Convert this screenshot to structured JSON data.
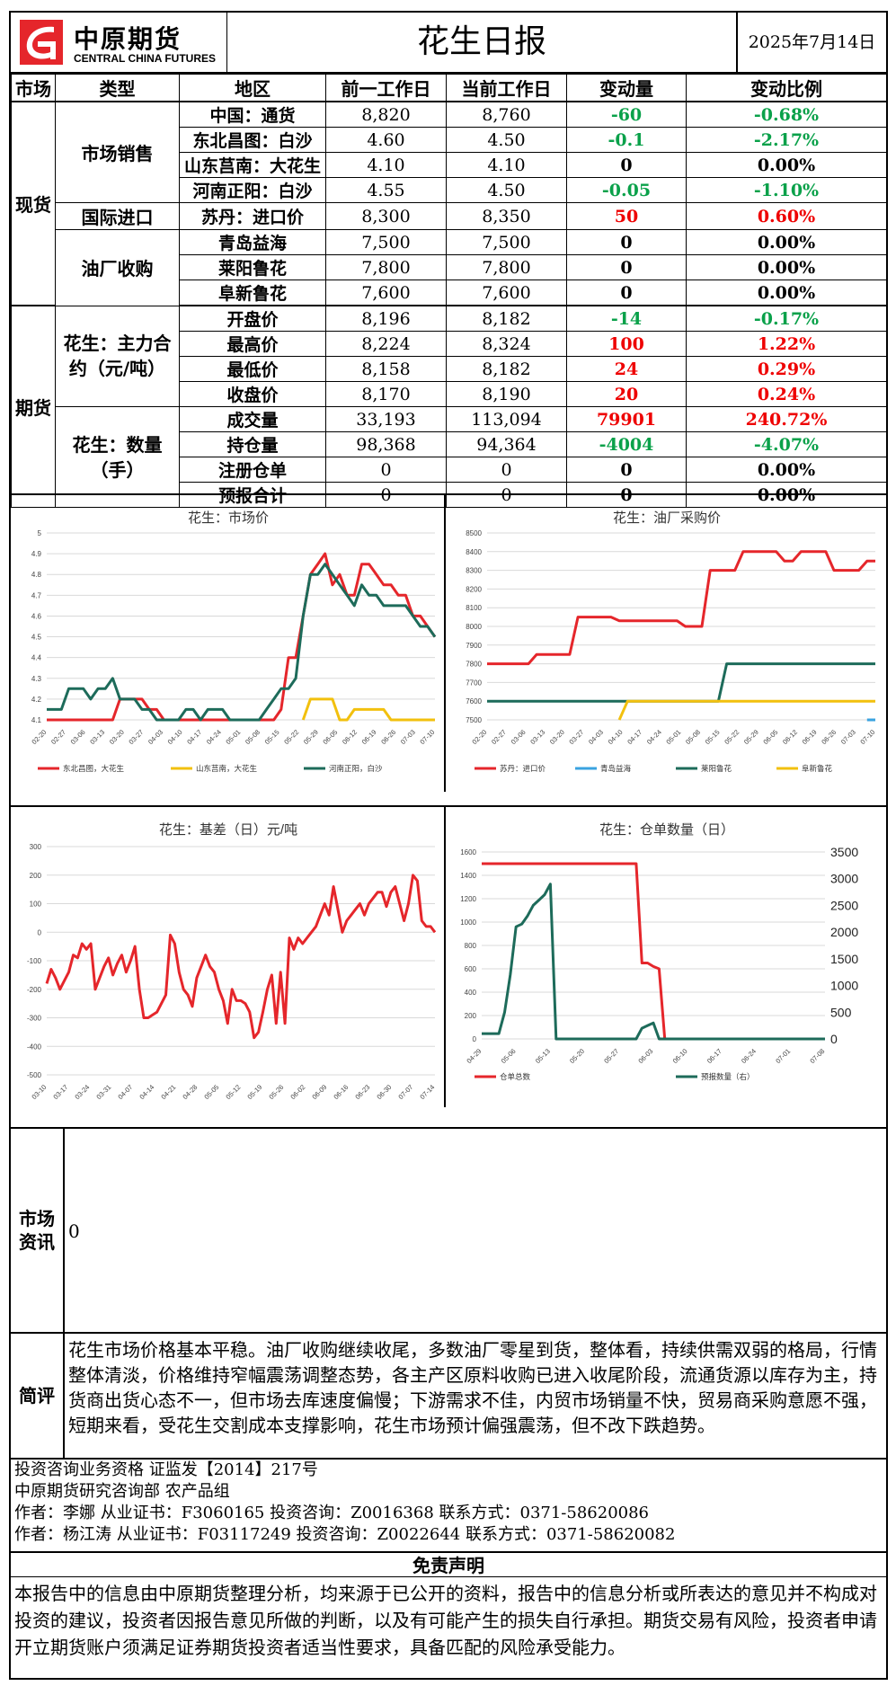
{
  "header": {
    "logo_cn": "中原期货",
    "logo_en": "CENTRAL CHINA FUTURES",
    "title": "花生日报",
    "date": "2025年7月14日"
  },
  "table": {
    "columns": [
      "市场",
      "类型",
      "地区",
      "前一工作日",
      "当前工作日",
      "变动量",
      "变动比例"
    ],
    "market_spot": "现货",
    "market_futures": "期货",
    "group_sales": "市场销售",
    "group_import": "国际进口",
    "group_oil": "油厂收购",
    "group_contract": "花生：主力合约（元/吨）",
    "group_volume": "花生：数量（手）",
    "rows": [
      {
        "name": "中国：通货",
        "prev": "8,820",
        "cur": "8,760",
        "chg": "-60",
        "pct": "-0.68%",
        "color": "#0aa14a"
      },
      {
        "name": "东北昌图：白沙",
        "prev": "4.60",
        "cur": "4.50",
        "chg": "-0.1",
        "pct": "-2.17%",
        "color": "#0aa14a"
      },
      {
        "name": "山东莒南：大花生",
        "prev": "4.10",
        "cur": "4.10",
        "chg": "0",
        "pct": "0.00%",
        "color": "#000000"
      },
      {
        "name": "河南正阳：白沙",
        "prev": "4.55",
        "cur": "4.50",
        "chg": "-0.05",
        "pct": "-1.10%",
        "color": "#0aa14a"
      },
      {
        "name": "苏丹：进口价",
        "prev": "8,300",
        "cur": "8,350",
        "chg": "50",
        "pct": "0.60%",
        "color": "#ee0000"
      },
      {
        "name": "青岛益海",
        "prev": "7,500",
        "cur": "7,500",
        "chg": "0",
        "pct": "0.00%",
        "color": "#000000"
      },
      {
        "name": "莱阳鲁花",
        "prev": "7,800",
        "cur": "7,800",
        "chg": "0",
        "pct": "0.00%",
        "color": "#000000"
      },
      {
        "name": "阜新鲁花",
        "prev": "7,600",
        "cur": "7,600",
        "chg": "0",
        "pct": "0.00%",
        "color": "#000000"
      },
      {
        "name": "开盘价",
        "prev": "8,196",
        "cur": "8,182",
        "chg": "-14",
        "pct": "-0.17%",
        "color": "#0aa14a"
      },
      {
        "name": "最高价",
        "prev": "8,224",
        "cur": "8,324",
        "chg": "100",
        "pct": "1.22%",
        "color": "#ee0000"
      },
      {
        "name": "最低价",
        "prev": "8,158",
        "cur": "8,182",
        "chg": "24",
        "pct": "0.29%",
        "color": "#ee0000"
      },
      {
        "name": "收盘价",
        "prev": "8,170",
        "cur": "8,190",
        "chg": "20",
        "pct": "0.24%",
        "color": "#ee0000"
      },
      {
        "name": "成交量",
        "prev": "33,193",
        "cur": "113,094",
        "chg": "79901",
        "pct": "240.72%",
        "color": "#ee0000"
      },
      {
        "name": "持仓量",
        "prev": "98,368",
        "cur": "94,364",
        "chg": "-4004",
        "pct": "-4.07%",
        "color": "#0aa14a"
      },
      {
        "name": "注册仓单",
        "prev": "0",
        "cur": "0",
        "chg": "0",
        "pct": "0.00%",
        "color": "#000000"
      },
      {
        "name": "预报合计",
        "prev": "0",
        "cur": "0",
        "chg": "0",
        "pct": "0.00%",
        "color": "#000000"
      }
    ]
  },
  "chart_data": [
    {
      "type": "line",
      "title": "花生：市场价",
      "ylim": [
        4.1,
        5
      ],
      "yticks": [
        "5",
        "4.9",
        "4.8",
        "4.7",
        "4.6",
        "4.5",
        "4.4",
        "4.3",
        "4.2",
        "4.1"
      ],
      "xticks": [
        "02-20",
        "02-27",
        "03-06",
        "03-13",
        "03-20",
        "03-27",
        "04-03",
        "04-10",
        "04-17",
        "04-24",
        "05-01",
        "05-08",
        "05-15",
        "05-22",
        "05-29",
        "06-05",
        "06-12",
        "06-19",
        "06-26",
        "07-03",
        "07-10"
      ],
      "series": [
        {
          "name": "东北昌图，大花生",
          "color": "#e5262b",
          "values": [
            4.1,
            4.1,
            4.1,
            4.1,
            4.1,
            4.1,
            4.1,
            4.1,
            4.1,
            4.1,
            4.2,
            4.2,
            4.2,
            4.2,
            4.15,
            4.15,
            4.1,
            4.1,
            4.1,
            4.1,
            4.1,
            4.1,
            4.1,
            4.1,
            4.1,
            4.1,
            4.1,
            4.1,
            4.1,
            4.1,
            4.1,
            4.1,
            4.15,
            4.4,
            4.4,
            4.6,
            4.8,
            4.85,
            4.9,
            4.75,
            4.8,
            4.7,
            4.7,
            4.85,
            4.85,
            4.8,
            4.75,
            4.75,
            4.7,
            4.7,
            4.6,
            4.6,
            4.55,
            4.5
          ]
        },
        {
          "name": "山东莒南，大花生",
          "color": "#f2c00e",
          "values": [
            null,
            null,
            null,
            null,
            null,
            null,
            null,
            null,
            null,
            null,
            null,
            null,
            null,
            null,
            null,
            null,
            null,
            null,
            null,
            null,
            null,
            null,
            null,
            null,
            null,
            null,
            null,
            null,
            null,
            null,
            null,
            null,
            null,
            null,
            null,
            4.1,
            4.2,
            4.2,
            4.2,
            4.2,
            4.1,
            4.1,
            4.15,
            4.15,
            4.15,
            4.15,
            4.15,
            4.1,
            4.1,
            4.1,
            4.1,
            4.1,
            4.1,
            4.1
          ]
        },
        {
          "name": "河南正阳，白沙",
          "color": "#1d6b5a",
          "values": [
            4.15,
            4.15,
            4.15,
            4.25,
            4.25,
            4.25,
            4.2,
            4.25,
            4.25,
            4.3,
            4.2,
            4.2,
            4.2,
            4.15,
            4.15,
            4.1,
            4.1,
            4.1,
            4.1,
            4.15,
            4.15,
            4.1,
            4.15,
            4.15,
            4.15,
            4.1,
            4.1,
            4.1,
            4.1,
            4.1,
            4.15,
            4.2,
            4.25,
            4.25,
            4.3,
            4.6,
            4.8,
            4.8,
            4.85,
            4.8,
            4.75,
            4.7,
            4.65,
            4.75,
            4.7,
            4.7,
            4.65,
            4.65,
            4.65,
            4.65,
            4.6,
            4.55,
            4.55,
            4.5
          ]
        }
      ]
    },
    {
      "type": "line",
      "title": "花生：油厂采购价",
      "ylim": [
        7500,
        8500
      ],
      "yticks": [
        "8500",
        "8400",
        "8300",
        "8200",
        "8100",
        "8000",
        "7900",
        "7800",
        "7700",
        "7600",
        "7500"
      ],
      "xticks": [
        "02-20",
        "02-27",
        "03-06",
        "03-13",
        "03-20",
        "03-27",
        "04-03",
        "04-10",
        "04-17",
        "04-24",
        "05-01",
        "05-08",
        "05-15",
        "05-22",
        "05-29",
        "06-05",
        "06-12",
        "06-19",
        "06-26",
        "07-03",
        "07-10"
      ],
      "series": [
        {
          "name": "苏丹：进口价",
          "color": "#e5262b",
          "values": [
            7800,
            7800,
            7800,
            7800,
            7800,
            7800,
            7850,
            7850,
            7850,
            7850,
            7850,
            8050,
            8050,
            8050,
            8050,
            8050,
            8030,
            8030,
            8030,
            8030,
            8030,
            8030,
            8030,
            8030,
            8000,
            8000,
            8000,
            8300,
            8300,
            8300,
            8300,
            8400,
            8400,
            8400,
            8400,
            8400,
            8350,
            8350,
            8400,
            8400,
            8400,
            8400,
            8300,
            8300,
            8300,
            8300,
            8350,
            8350
          ]
        },
        {
          "name": "青岛益海",
          "color": "#3aa3e0",
          "values": [
            null,
            null,
            null,
            null,
            null,
            null,
            null,
            null,
            null,
            null,
            null,
            null,
            null,
            null,
            null,
            null,
            null,
            null,
            null,
            null,
            null,
            null,
            null,
            null,
            null,
            null,
            null,
            null,
            null,
            null,
            null,
            null,
            null,
            null,
            null,
            null,
            null,
            null,
            null,
            null,
            null,
            null,
            null,
            null,
            null,
            null,
            7500,
            7500
          ]
        },
        {
          "name": "莱阳鲁花",
          "color": "#1d6b5a",
          "values": [
            7600,
            7600,
            7600,
            7600,
            7600,
            7600,
            7600,
            7600,
            7600,
            7600,
            7600,
            7600,
            7600,
            7600,
            7600,
            7600,
            7600,
            7600,
            7600,
            7600,
            7600,
            7600,
            7600,
            7600,
            7600,
            7600,
            7600,
            7600,
            7600,
            7800,
            7800,
            7800,
            7800,
            7800,
            7800,
            7800,
            7800,
            7800,
            7800,
            7800,
            7800,
            7800,
            7800,
            7800,
            7800,
            7800,
            7800,
            7800
          ]
        },
        {
          "name": "阜新鲁花",
          "color": "#f2c00e",
          "values": [
            null,
            null,
            null,
            null,
            null,
            null,
            null,
            null,
            null,
            null,
            null,
            null,
            null,
            null,
            null,
            null,
            7500,
            7600,
            7600,
            7600,
            7600,
            7600,
            7600,
            7600,
            7600,
            7600,
            7600,
            7600,
            7600,
            7600,
            7600,
            7600,
            7600,
            7600,
            7600,
            7600,
            7600,
            7600,
            7600,
            7600,
            7600,
            7600,
            7600,
            7600,
            7600,
            7600,
            7600,
            7600
          ]
        }
      ]
    },
    {
      "type": "line",
      "title": "花生：基差（日）元/吨",
      "ylim": [
        -500,
        300
      ],
      "yticks": [
        "300",
        "200",
        "100",
        "0",
        "-100",
        "-200",
        "-300",
        "-400",
        "-500"
      ],
      "xticks": [
        "03-10",
        "03-17",
        "03-24",
        "03-31",
        "04-07",
        "04-14",
        "04-21",
        "04-28",
        "05-05",
        "05-12",
        "05-19",
        "05-26",
        "06-02",
        "06-09",
        "06-16",
        "06-23",
        "06-30",
        "07-07",
        "07-14"
      ],
      "series": [
        {
          "name": "基差",
          "color": "#e5262b",
          "values": [
            -180,
            -130,
            -160,
            -200,
            -170,
            -140,
            -80,
            -90,
            -40,
            -60,
            -40,
            -200,
            -160,
            -120,
            -90,
            -150,
            -110,
            -80,
            -140,
            -100,
            -50,
            -200,
            -300,
            -300,
            -290,
            -280,
            -250,
            -220,
            -10,
            -40,
            -140,
            -200,
            -220,
            -260,
            -160,
            -120,
            -80,
            -120,
            -140,
            -200,
            -240,
            -320,
            -200,
            -240,
            -240,
            -250,
            -280,
            -370,
            -350,
            -280,
            -200,
            -150,
            -320,
            -140,
            -320,
            -20,
            -60,
            -20,
            -40,
            -20,
            0,
            20,
            60,
            100,
            60,
            160,
            80,
            0,
            40,
            60,
            80,
            100,
            60,
            100,
            120,
            140,
            140,
            90,
            140,
            160,
            100,
            40,
            100,
            200,
            180,
            40,
            20,
            20,
            0
          ]
        }
      ]
    },
    {
      "type": "line",
      "title": "花生：仓单数量（日）",
      "ylim": [
        0,
        1600
      ],
      "ylim_right": [
        0,
        3500
      ],
      "yticks": [
        "1600",
        "1400",
        "1200",
        "1000",
        "800",
        "600",
        "400",
        "200",
        "0"
      ],
      "yticks_right": [
        "3500",
        "3000",
        "2500",
        "2000",
        "1500",
        "1000",
        "500",
        "0"
      ],
      "xticks": [
        "04-29",
        "05-06",
        "05-13",
        "05-20",
        "05-27",
        "06-03",
        "06-10",
        "06-17",
        "06-24",
        "07-01",
        "07-08"
      ],
      "series": [
        {
          "name": "仓单总数",
          "color": "#e5262b",
          "values": [
            1500,
            1500,
            1500,
            1500,
            1500,
            1500,
            1500,
            1500,
            1500,
            1500,
            1500,
            1500,
            1500,
            1500,
            1500,
            1500,
            1500,
            1500,
            1500,
            1500,
            1500,
            1500,
            1500,
            1500,
            1500,
            1500,
            1500,
            1500,
            650,
            650,
            620,
            600,
            0,
            0,
            0,
            0,
            0,
            0,
            0,
            0,
            0,
            0,
            0,
            0,
            0,
            0,
            0,
            0,
            0,
            0,
            0,
            0,
            0,
            0,
            0,
            0,
            0,
            0,
            0,
            0,
            0
          ]
        },
        {
          "name": "预报数量（右）",
          "color": "#1d6b5a",
          "values_right": [
            100,
            100,
            100,
            100,
            500,
            1200,
            2100,
            2150,
            2300,
            2500,
            2600,
            2700,
            2900,
            0,
            0,
            0,
            0,
            0,
            0,
            0,
            0,
            0,
            0,
            0,
            0,
            0,
            0,
            0,
            200,
            250,
            300,
            0,
            0,
            0,
            0,
            0,
            0,
            0,
            0,
            0,
            0,
            0,
            0,
            0,
            0,
            0,
            0,
            0,
            0,
            0,
            0,
            0,
            0,
            0,
            0,
            0,
            0,
            0,
            0,
            0,
            0
          ]
        }
      ]
    }
  ],
  "news": {
    "label": "市场资讯",
    "text": "0"
  },
  "review": {
    "label": "简评",
    "text": "花生市场价格基本平稳。油厂收购继续收尾，多数油厂零星到货，整体看，持续供需双弱的格局，行情整体清淡，价格维持窄幅震荡调整态势，各主产区原料收购已进入收尾阶段，流通货源以库存为主，持货商出货心态不一，但市场去库速度偏慢；下游需求不佳，内贸市场销量不快，贸易商采购意愿不强，短期来看，受花生交割成本支撑影响，花生市场预计偏强震荡，但不改下跌趋势。"
  },
  "footer": {
    "line1": "投资咨询业务资格  证监发【2014】217号",
    "line2": "中原期货研究咨询部  农产品组",
    "line3": "作者：李娜     从业证书：F3060165     投资咨询：Z0016368     联系方式：0371-58620086",
    "line4": "作者：杨江涛     从业证书：F03117249  投资咨询：Z0022644     联系方式：0371-58620082",
    "disclaimer_title": "免责声明",
    "disclaimer": "本报告中的信息由中原期货整理分析，均来源于已公开的资料，报告中的信息分析或所表达的意见并不构成对投资的建议，投资者因报告意见所做的判断，以及有可能产生的损失自行承担。期货交易有风险，投资者申请开立期货账户须满足证券期货投资者适当性要求，具备匹配的风险承受能力。"
  }
}
